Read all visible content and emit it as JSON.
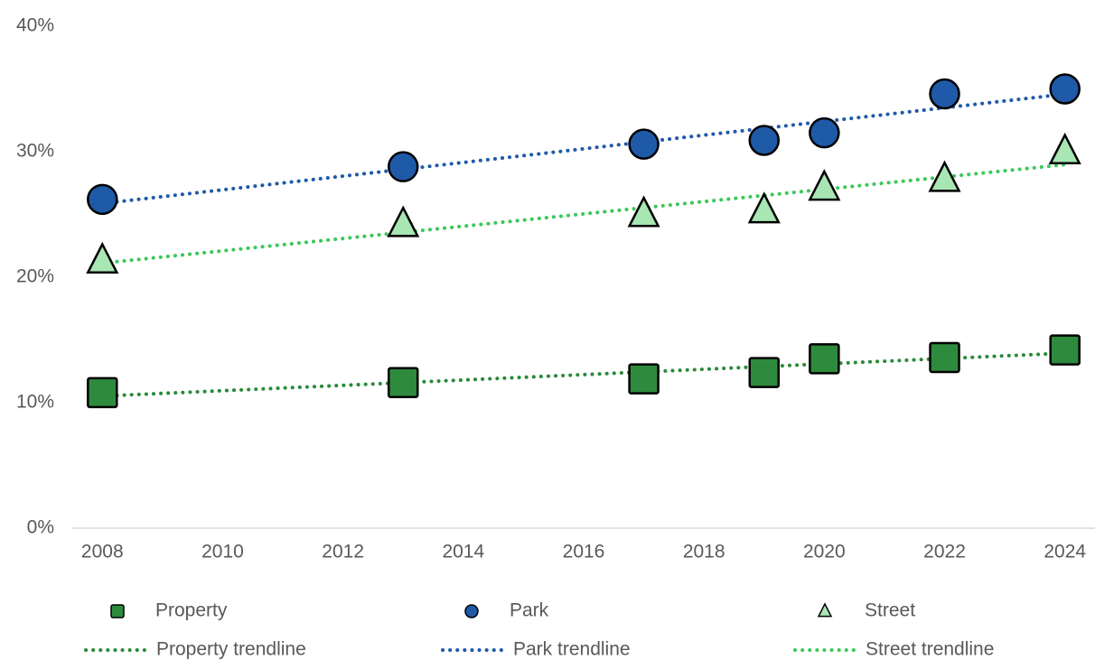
{
  "chart_data": {
    "type": "scatter",
    "x": [
      2008,
      2013,
      2017,
      2019,
      2020,
      2022,
      2024
    ],
    "series": [
      {
        "name": "Property",
        "color": "#2e8b3e",
        "marker": "square",
        "values": [
          10.8,
          11.6,
          11.9,
          12.4,
          13.5,
          13.6,
          14.2
        ],
        "trendline": {
          "name": "Property trendline",
          "color": "#2a8a3a"
        }
      },
      {
        "name": "Park",
        "color": "#1f5aa8",
        "marker": "circle",
        "values": [
          26.2,
          28.8,
          30.6,
          30.9,
          31.5,
          34.6,
          35.0
        ],
        "trendline": {
          "name": "Park trendline",
          "color": "#1f5aa8"
        }
      },
      {
        "name": "Street",
        "color": "#a8e6b4",
        "marker": "triangle",
        "values": [
          21.3,
          24.2,
          25.0,
          25.3,
          27.1,
          27.8,
          30.0
        ],
        "trendline": {
          "name": "Street trendline",
          "color": "#3cc85a"
        }
      }
    ],
    "xlim": [
      2007.5,
      2024.5
    ],
    "xticks": [
      2008,
      2010,
      2012,
      2014,
      2016,
      2018,
      2020,
      2022,
      2024
    ],
    "ylim": [
      0,
      40
    ],
    "yticks": [
      {
        "value": 0,
        "label": "0%"
      },
      {
        "value": 10,
        "label": "10%"
      },
      {
        "value": 20,
        "label": "20%"
      },
      {
        "value": 30,
        "label": "30%"
      },
      {
        "value": 40,
        "label": "40%"
      }
    ],
    "grid": false,
    "legend": "bottom"
  }
}
